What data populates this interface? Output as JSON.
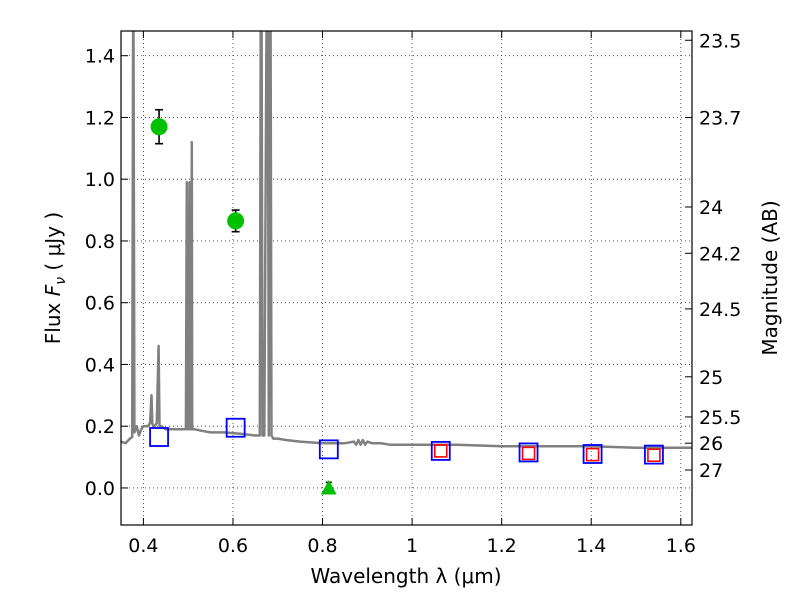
{
  "chart_data": {
    "type": "scatter",
    "xlabel": "Wavelength  λ (μm)",
    "ylabel": "Flux  F_ν  ( μJy )",
    "ylabel_parts": {
      "pre": "Flux  ",
      "F": "F",
      "sub": "ν",
      "post": "  ( μJy )"
    },
    "y2label": "Magnitude (AB)",
    "xlim": [
      0.35,
      1.625
    ],
    "ylim": [
      -0.12,
      1.48
    ],
    "grid": true,
    "x_ticks": [
      0.4,
      0.6,
      0.8,
      1.0,
      1.2,
      1.4,
      1.6
    ],
    "x_tick_labels": [
      "0.4",
      "0.6",
      "0.8",
      "1",
      "1.2",
      "1.4",
      "1.6"
    ],
    "y_ticks": [
      0.0,
      0.2,
      0.4,
      0.6,
      0.8,
      1.0,
      1.2,
      1.4
    ],
    "y_tick_labels": [
      "0.0",
      "0.2",
      "0.4",
      "0.6",
      "0.8",
      "1.0",
      "1.2",
      "1.4"
    ],
    "y2_ticks": [
      {
        "label": "23.5",
        "flux": 1.45
      },
      {
        "label": "23.7",
        "flux": 1.2
      },
      {
        "label": "24",
        "flux": 0.91
      },
      {
        "label": "24.2",
        "flux": 0.76
      },
      {
        "label": "24.5",
        "flux": 0.58
      },
      {
        "label": "25",
        "flux": 0.36
      },
      {
        "label": "25.5",
        "flux": 0.23
      },
      {
        "label": "26",
        "flux": 0.145
      },
      {
        "label": "27",
        "flux": 0.058
      }
    ],
    "colors": {
      "spectrum": "#808080",
      "detections": "#00c000",
      "upper_limit": "#00c000",
      "model_photometry": "#0000ff",
      "observed_photometry": "#ff0000",
      "error_bars": "#000000"
    },
    "series": [
      {
        "kind": "model_spectrum",
        "x": [
          0.35,
          0.36,
          0.37,
          0.375,
          0.377,
          0.378,
          0.38,
          0.385,
          0.39,
          0.395,
          0.4,
          0.41,
          0.415,
          0.418,
          0.42,
          0.422,
          0.425,
          0.43,
          0.434,
          0.436,
          0.438,
          0.44,
          0.45,
          0.46,
          0.48,
          0.495,
          0.497,
          0.499,
          0.5,
          0.501,
          0.503,
          0.505,
          0.507,
          0.508,
          0.509,
          0.511,
          0.515,
          0.53,
          0.55,
          0.58,
          0.62,
          0.65,
          0.66,
          0.662,
          0.664,
          0.666,
          0.668,
          0.67,
          0.675,
          0.678,
          0.68,
          0.682,
          0.684,
          0.686,
          0.69,
          0.7,
          0.72,
          0.75,
          0.8,
          0.85,
          0.87,
          0.875,
          0.88,
          0.885,
          0.89,
          0.895,
          0.9,
          0.91,
          0.93,
          0.95,
          1.0,
          1.1,
          1.2,
          1.3,
          1.4,
          1.5,
          1.55,
          1.6,
          1.625
        ],
        "y": [
          0.15,
          0.145,
          0.16,
          0.165,
          1.48,
          1.48,
          0.18,
          0.2,
          0.17,
          0.19,
          0.2,
          0.2,
          0.21,
          0.3,
          0.21,
          0.2,
          0.2,
          0.21,
          0.46,
          0.2,
          0.2,
          0.2,
          0.19,
          0.19,
          0.19,
          0.19,
          0.99,
          0.19,
          0.19,
          0.19,
          0.99,
          0.19,
          0.19,
          1.12,
          0.19,
          0.19,
          0.19,
          0.185,
          0.18,
          0.18,
          0.175,
          0.17,
          0.17,
          1.48,
          1.48,
          0.17,
          0.17,
          0.17,
          1.48,
          1.48,
          0.17,
          1.48,
          1.48,
          0.17,
          0.16,
          0.16,
          0.155,
          0.15,
          0.145,
          0.145,
          0.15,
          0.14,
          0.155,
          0.14,
          0.155,
          0.14,
          0.15,
          0.145,
          0.145,
          0.14,
          0.14,
          0.14,
          0.135,
          0.135,
          0.135,
          0.13,
          0.13,
          0.13,
          0.13
        ]
      },
      {
        "kind": "detections",
        "marker": "circle",
        "points": [
          {
            "x": 0.435,
            "y": 1.17,
            "err": 0.055
          },
          {
            "x": 0.606,
            "y": 0.865,
            "err": 0.035
          }
        ]
      },
      {
        "kind": "upper_limit",
        "marker": "triangle",
        "points": [
          {
            "x": 0.814,
            "y": 0.0,
            "err": 0.018
          }
        ]
      },
      {
        "kind": "model_photometry",
        "marker": "open-square-large",
        "points": [
          {
            "x": 0.435,
            "y": 0.165
          },
          {
            "x": 0.606,
            "y": 0.195
          },
          {
            "x": 0.814,
            "y": 0.125
          },
          {
            "x": 1.064,
            "y": 0.12
          },
          {
            "x": 1.26,
            "y": 0.115
          },
          {
            "x": 1.403,
            "y": 0.11
          },
          {
            "x": 1.54,
            "y": 0.108
          }
        ]
      },
      {
        "kind": "observed_photometry",
        "marker": "open-square-small",
        "points": [
          {
            "x": 1.064,
            "y": 0.12
          },
          {
            "x": 1.26,
            "y": 0.112
          },
          {
            "x": 1.403,
            "y": 0.108
          },
          {
            "x": 1.54,
            "y": 0.106
          }
        ]
      }
    ]
  }
}
